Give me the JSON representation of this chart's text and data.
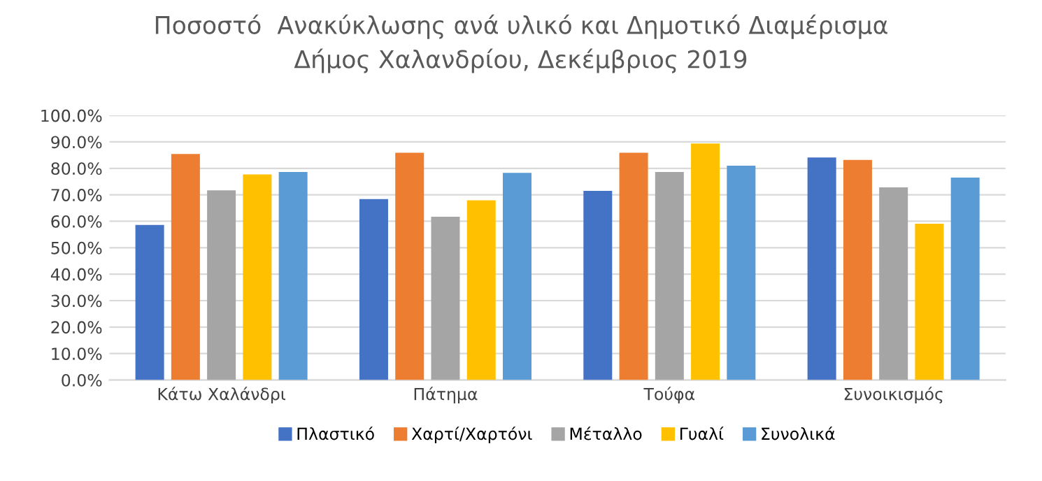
{
  "chart_data": {
    "type": "bar",
    "title": "Ποσοστό  Ανακύκλωσης ανά υλικό και Δημοτικό Διαμέρισμα\nΔήμος Χαλανδρίου, Δεκέμβριος 2019",
    "categories": [
      "Κάτω Χαλάνδρι",
      "Πάτημα",
      "Τούφα",
      "Συνοικισμός"
    ],
    "series": [
      {
        "name": "Πλαστικό",
        "color": "#4472c4",
        "values": [
          58.6,
          68.4,
          71.5,
          84.1
        ]
      },
      {
        "name": "Χαρτί/Χαρτόνι",
        "color": "#ed7d31",
        "values": [
          85.4,
          85.9,
          85.9,
          83.2
        ]
      },
      {
        "name": "Μέταλλο",
        "color": "#a5a5a5",
        "values": [
          71.7,
          61.7,
          78.6,
          72.8
        ]
      },
      {
        "name": "Γυαλί",
        "color": "#ffc000",
        "values": [
          77.7,
          67.9,
          89.4,
          59.1
        ]
      },
      {
        "name": "Συνολικά",
        "color": "#5b9bd5",
        "values": [
          78.6,
          78.3,
          81.0,
          76.5
        ]
      }
    ],
    "ylim": [
      0,
      100
    ],
    "yticks": [
      {
        "value": 0,
        "label": "0.0%"
      },
      {
        "value": 10,
        "label": "10.0%"
      },
      {
        "value": 20,
        "label": "20.0%"
      },
      {
        "value": 30,
        "label": "30.0%"
      },
      {
        "value": 40,
        "label": "40.0%"
      },
      {
        "value": 50,
        "label": "50.0%"
      },
      {
        "value": 60,
        "label": "60.0%"
      },
      {
        "value": 70,
        "label": "70.0%"
      },
      {
        "value": 80,
        "label": "80.0%"
      },
      {
        "value": 90,
        "label": "90.0%"
      },
      {
        "value": 100,
        "label": "100.0%"
      }
    ],
    "grid": "y",
    "legend": "bottom"
  }
}
